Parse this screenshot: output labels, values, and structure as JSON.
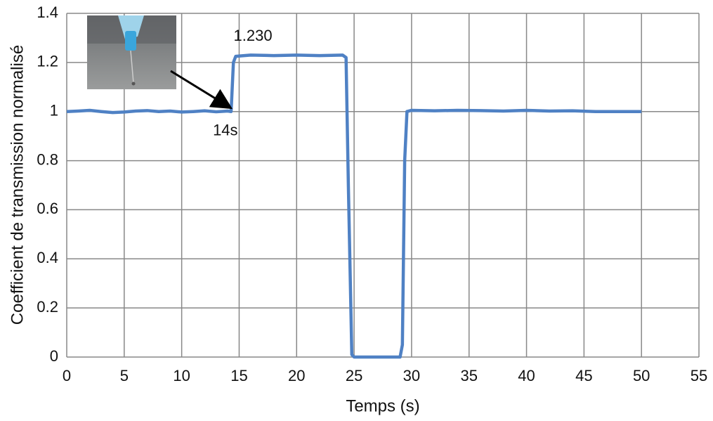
{
  "chart_data": {
    "type": "line",
    "x_label": "Temps (s)",
    "y_label": "Coefficient de transmission normalisé",
    "annotations": [
      "1.230",
      "14s"
    ],
    "xlim": [
      0,
      55
    ],
    "xticks": [
      0,
      5,
      10,
      15,
      20,
      25,
      30,
      35,
      40,
      45,
      50,
      55
    ],
    "ylim": [
      0,
      1.4
    ],
    "yticks": [
      0,
      0.2,
      0.4,
      0.6,
      0.8,
      1,
      1.2,
      1.4
    ],
    "grid": true,
    "series": [
      {
        "color": "#4f81c4",
        "x": [
          0,
          1,
          2,
          3,
          4,
          5,
          6,
          7,
          8,
          9,
          10,
          11,
          12,
          13,
          14,
          14.3,
          14.5,
          14.7,
          16,
          18,
          20,
          22,
          24,
          24.3,
          24.5,
          24.8,
          25,
          27,
          29,
          29.2,
          29.4,
          29.6,
          30,
          32,
          34,
          36,
          38,
          40,
          42,
          44,
          46,
          48,
          50
        ],
        "values": [
          1.0,
          1.002,
          1.005,
          1.0,
          0.996,
          0.998,
          1.002,
          1.004,
          1.0,
          1.002,
          0.998,
          1.0,
          1.003,
          0.999,
          1.002,
          1.0,
          1.2,
          1.225,
          1.23,
          1.228,
          1.23,
          1.228,
          1.23,
          1.22,
          0.7,
          0.01,
          0,
          0,
          0,
          0.05,
          0.8,
          1.0,
          1.005,
          1.003,
          1.005,
          1.004,
          1.002,
          1.005,
          1.002,
          1.003,
          1.0,
          1.0,
          1.0
        ]
      }
    ]
  }
}
